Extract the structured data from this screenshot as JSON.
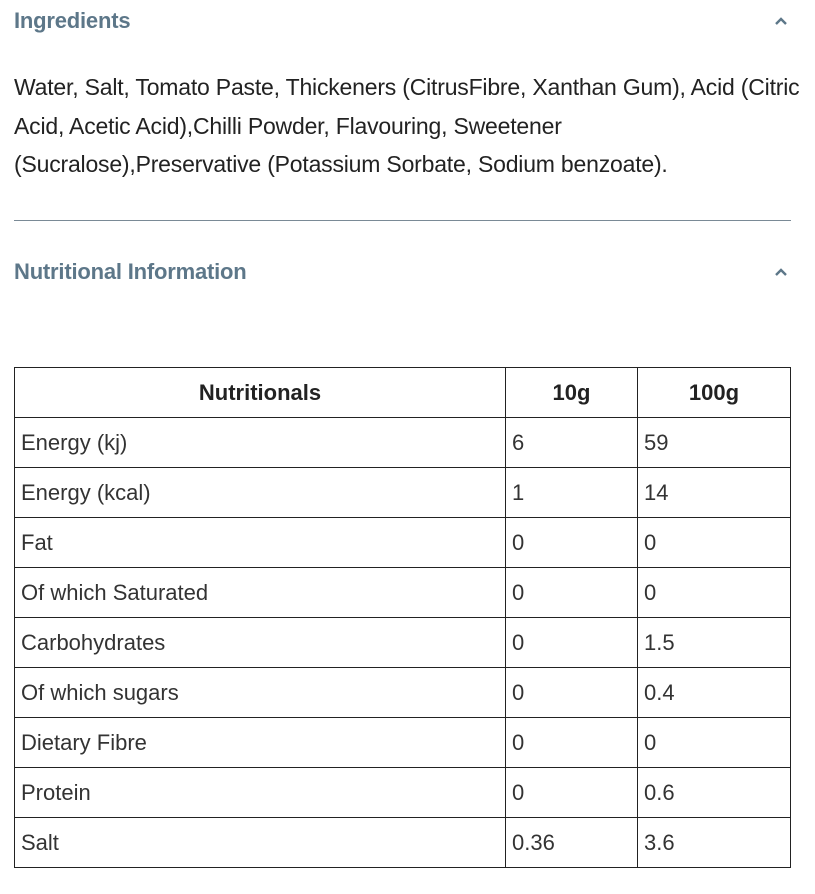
{
  "ingredients": {
    "title": "Ingredients",
    "expanded": true,
    "text": "Water, Salt, Tomato Paste, Thickeners (CitrusFibre, Xanthan Gum), Acid (Citric Acid, Acetic Acid),Chilli Powder, Flavouring, Sweetener (Sucralose),Preservative (Potassium Sorbate, Sodium benzoate)."
  },
  "nutrition": {
    "title": "Nutritional Information",
    "expanded": true,
    "headers": [
      "Nutritionals",
      "10g",
      "100g"
    ],
    "rows": [
      [
        "Energy (kj)",
        "6",
        "59"
      ],
      [
        "Energy (kcal)",
        "1",
        "14"
      ],
      [
        "Fat",
        "0",
        "0"
      ],
      [
        "Of which Saturated",
        "0",
        "0"
      ],
      [
        "Carbohydrates",
        "0",
        "1.5"
      ],
      [
        "Of which sugars",
        "0",
        "0.4"
      ],
      [
        "Dietary Fibre",
        "0",
        "0"
      ],
      [
        "Protein",
        "0",
        "0.6"
      ],
      [
        "Salt",
        "0.36",
        "3.6"
      ]
    ]
  },
  "colors": {
    "heading": "#5d7789",
    "divider": "#7a8a96",
    "text": "#222222"
  },
  "icons": {
    "toggle": "chevron-up-icon"
  }
}
